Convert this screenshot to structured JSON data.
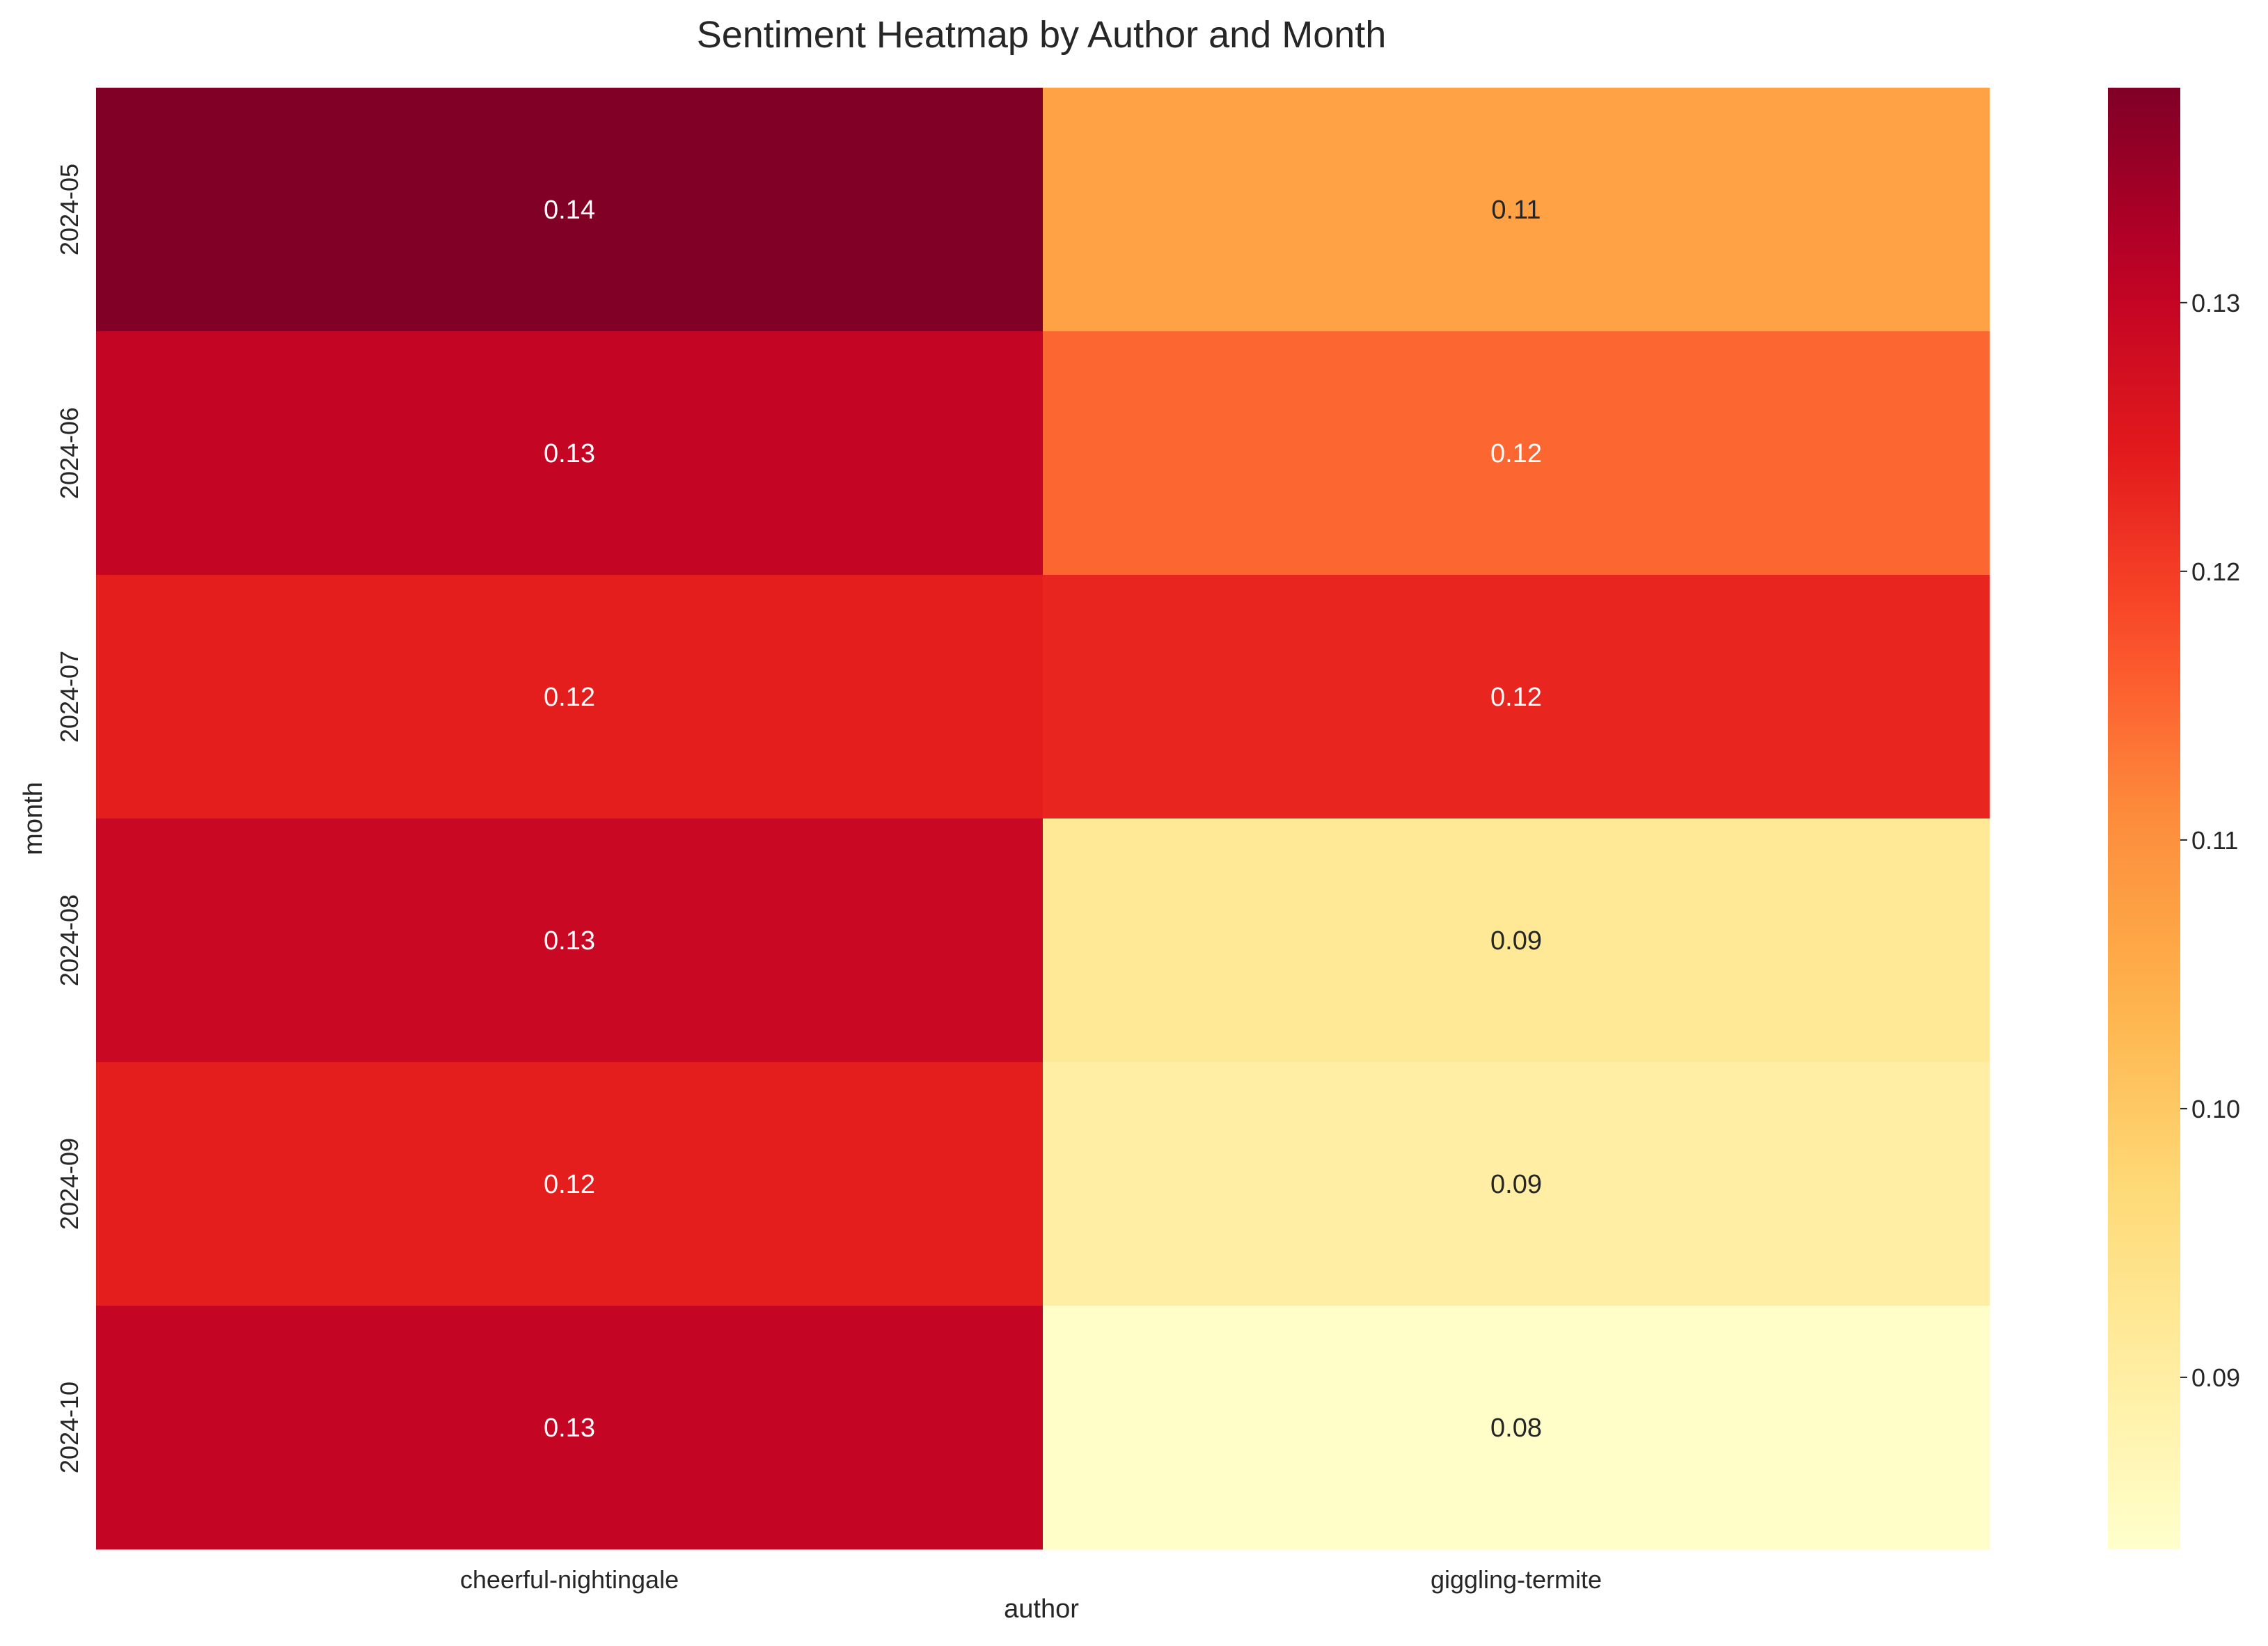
{
  "chart_data": {
    "type": "heatmap",
    "title": "Sentiment Heatmap by Author and Month",
    "xlabel": "author",
    "ylabel": "month",
    "x_categories": [
      "cheerful-nightingale",
      "giggling-termite"
    ],
    "y_categories": [
      "2024-05",
      "2024-06",
      "2024-07",
      "2024-08",
      "2024-09",
      "2024-10"
    ],
    "values": [
      [
        0.138,
        0.107
      ],
      [
        0.13,
        0.115
      ],
      [
        0.124,
        0.123
      ],
      [
        0.129,
        0.092
      ],
      [
        0.124,
        0.09
      ],
      [
        0.13,
        0.084
      ]
    ],
    "cell_labels": [
      [
        "0.14",
        "0.11"
      ],
      [
        "0.13",
        "0.12"
      ],
      [
        "0.12",
        "0.12"
      ],
      [
        "0.13",
        "0.09"
      ],
      [
        "0.12",
        "0.09"
      ],
      [
        "0.13",
        "0.08"
      ]
    ],
    "colorbar": {
      "colormap": "YlOrRd",
      "range": [
        0.0836,
        0.138
      ],
      "ticks": [
        0.09,
        0.1,
        0.11,
        0.12,
        0.13
      ],
      "tick_labels": [
        "0.09",
        "0.10",
        "0.11",
        "0.12",
        "0.13"
      ]
    },
    "grid": false,
    "label_colors": {
      "light_text": "#ffffff",
      "dark_text": "#262626"
    }
  }
}
